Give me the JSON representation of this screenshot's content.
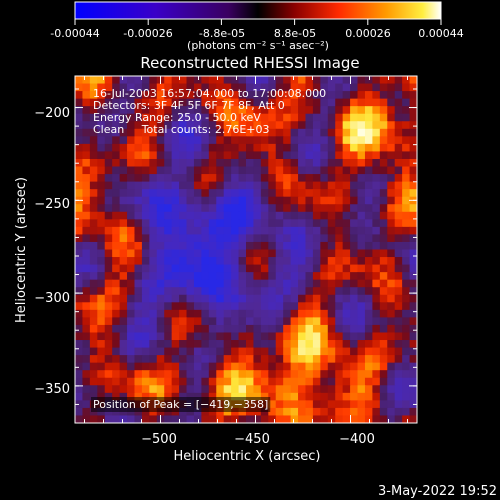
{
  "colorbar": {
    "tick_labels": [
      "-0.00044",
      "-0.00026",
      "-8.8e-05",
      "8.8e-05",
      "0.00026",
      "0.00044"
    ],
    "unit_label": "(photons cm⁻² s⁻¹ asec⁻²)"
  },
  "chart_data": {
    "type": "heatmap",
    "title": "Reconstructed RHESSI Image",
    "xlabel": "Heliocentric X (arcsec)",
    "ylabel": "Heliocentric Y (arcsec)",
    "xlim": [
      -545,
      -365
    ],
    "ylim": [
      -370,
      -183
    ],
    "x_ticks": [
      -500,
      -450,
      -400
    ],
    "y_ticks": [
      -200,
      -250,
      -300,
      -350
    ],
    "x_tick_labels": [
      "−500",
      "−450",
      "−400"
    ],
    "y_tick_labels": [
      "−200",
      "−250",
      "−300",
      "−350"
    ],
    "value_range": [
      -0.00044,
      0.00044
    ],
    "annotations": [
      "16-Jul-2003 16:57:04.000 to 17:00:08.000",
      "Detectors: 3F 4F 5F 6F 7F 8F, Att 0",
      "Energy Range: 25.0 - 50.0 keV",
      "Clean     Total counts: 2.76E+03"
    ],
    "peak_label": "Position of Peak = [−419,−358]",
    "peak_position": [
      -419,
      -358
    ]
  },
  "footer": {
    "timestamp": "3-May-2022 19:52"
  }
}
